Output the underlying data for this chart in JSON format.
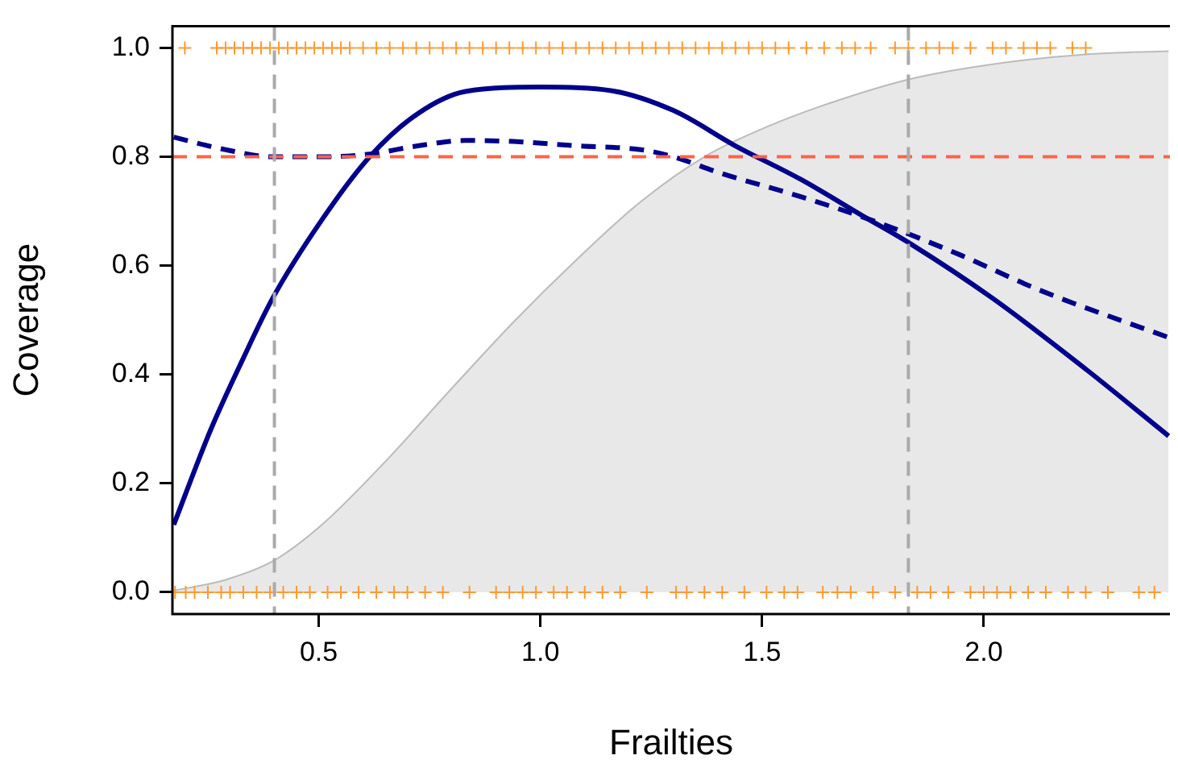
{
  "chart_data": {
    "type": "line",
    "xlabel": "Frailties",
    "ylabel": "Coverage",
    "xlim": [
      0.17,
      2.42
    ],
    "ylim": [
      -0.04,
      1.04
    ],
    "xticks": [
      0.5,
      {
        "value": 1,
        "label": "1.0"
      },
      1.5,
      {
        "value": 2,
        "label": "2.0"
      }
    ],
    "yticks": [
      {
        "value": 0,
        "label": "0.0"
      },
      {
        "value": 0.2,
        "label": "0.2"
      },
      {
        "value": 0.4,
        "label": "0.4"
      },
      {
        "value": 0.6,
        "label": "0.6"
      },
      {
        "value": 0.8,
        "label": "0.8"
      },
      {
        "value": 1,
        "label": "1.0"
      }
    ],
    "grid": false,
    "legend": false,
    "series": [
      {
        "type": "area",
        "color": "#e8e8e8",
        "x": [
          0.173,
          0.29,
          0.396,
          0.507,
          0.65,
          0.795,
          0.94,
          1.083,
          1.227,
          1.37,
          1.514,
          1.658,
          1.835,
          2.02,
          2.23,
          2.417
        ],
        "values": [
          0.003,
          0.023,
          0.057,
          0.124,
          0.24,
          0.37,
          0.497,
          0.612,
          0.718,
          0.8,
          0.856,
          0.9,
          0.943,
          0.97,
          0.988,
          0.994
        ]
      },
      {
        "line_style": "solid",
        "marker": "none",
        "color": "#00008b",
        "x": [
          0.173,
          0.255,
          0.327,
          0.396,
          0.507,
          0.615,
          0.723,
          0.831,
          1.0,
          1.155,
          1.3,
          1.44,
          1.586,
          1.73,
          1.835,
          2.02,
          2.23,
          2.417
        ],
        "values": [
          0.124,
          0.296,
          0.425,
          0.54,
          0.684,
          0.8,
          0.879,
          0.92,
          0.928,
          0.922,
          0.885,
          0.82,
          0.759,
          0.69,
          0.64,
          0.54,
          0.41,
          0.287
        ]
      },
      {
        "line_style": "dashed",
        "marker": "none",
        "color": "#00008b",
        "x": [
          0.173,
          0.29,
          0.396,
          0.507,
          0.615,
          0.723,
          0.831,
          0.94,
          1.083,
          1.227,
          1.3,
          1.406,
          1.586,
          1.766,
          1.946,
          2.126,
          2.417
        ],
        "values": [
          0.836,
          0.813,
          0.8,
          0.8,
          0.805,
          0.82,
          0.83,
          0.828,
          0.82,
          0.813,
          0.8,
          0.77,
          0.727,
          0.678,
          0.62,
          0.555,
          0.468
        ]
      },
      {
        "type": "scatter",
        "marker": "cross",
        "color": "#ff9933",
        "x": [
          0.198,
          0.27,
          0.29,
          0.31,
          0.33,
          0.35,
          0.37,
          0.39,
          0.41,
          0.43,
          0.45,
          0.47,
          0.49,
          0.51,
          0.53,
          0.55,
          0.57,
          0.6,
          0.63,
          0.66,
          0.69,
          0.72,
          0.75,
          0.78,
          0.81,
          0.84,
          0.87,
          0.9,
          0.93,
          0.96,
          0.99,
          1.02,
          1.05,
          1.08,
          1.11,
          1.14,
          1.17,
          1.2,
          1.23,
          1.26,
          1.29,
          1.32,
          1.35,
          1.38,
          1.41,
          1.44,
          1.47,
          1.5,
          1.53,
          1.56,
          1.6,
          1.64,
          1.68,
          1.71,
          1.745,
          1.8,
          1.83,
          1.87,
          1.9,
          1.93,
          1.97,
          2.02,
          2.05,
          2.09,
          2.12,
          2.15,
          2.2,
          2.23
        ],
        "values": [
          1,
          1,
          1,
          1,
          1,
          1,
          1,
          1,
          1,
          1,
          1,
          1,
          1,
          1,
          1,
          1,
          1,
          1,
          1,
          1,
          1,
          1,
          1,
          1,
          1,
          1,
          1,
          1,
          1,
          1,
          1,
          1,
          1,
          1,
          1,
          1,
          1,
          1,
          1,
          1,
          1,
          1,
          1,
          1,
          1,
          1,
          1,
          1,
          1,
          1,
          1,
          1,
          1,
          1,
          1,
          1,
          1,
          1,
          1,
          1,
          1,
          1,
          1,
          1,
          1,
          1,
          1,
          1
        ]
      },
      {
        "type": "scatter",
        "marker": "cross",
        "color": "#ff9933",
        "x": [
          0.176,
          0.2,
          0.22,
          0.25,
          0.28,
          0.3,
          0.33,
          0.36,
          0.39,
          0.42,
          0.45,
          0.48,
          0.52,
          0.55,
          0.59,
          0.63,
          0.67,
          0.7,
          0.74,
          0.78,
          0.84,
          0.9,
          0.93,
          0.96,
          0.99,
          1.03,
          1.06,
          1.1,
          1.14,
          1.18,
          1.24,
          1.306,
          1.33,
          1.37,
          1.41,
          1.46,
          1.51,
          1.55,
          1.58,
          1.637,
          1.67,
          1.7,
          1.75,
          1.8,
          1.85,
          1.88,
          1.92,
          1.97,
          2.0,
          2.03,
          2.06,
          2.1,
          2.14,
          2.19,
          2.23,
          2.28,
          2.35,
          2.385
        ],
        "values": [
          0,
          0,
          0,
          0,
          0,
          0,
          0,
          0,
          0,
          0,
          0,
          0,
          0,
          0,
          0,
          0,
          0,
          0,
          0,
          0,
          0,
          0,
          0,
          0,
          0,
          0,
          0,
          0,
          0,
          0,
          0,
          0,
          0,
          0,
          0,
          0,
          0,
          0,
          0,
          0,
          0,
          0,
          0,
          0,
          0,
          0,
          0,
          0,
          0,
          0,
          0,
          0,
          0,
          0,
          0,
          0,
          0,
          0
        ]
      }
    ],
    "ref_lines": [
      {
        "axis": "y",
        "value": 0.8,
        "color": "#ff6347",
        "line_style": "dashed"
      },
      {
        "axis": "x",
        "value": 0.4,
        "color": "#aaaaaa",
        "line_style": "dashed"
      },
      {
        "axis": "x",
        "value": 1.83,
        "color": "#aaaaaa",
        "line_style": "dashed"
      }
    ]
  }
}
